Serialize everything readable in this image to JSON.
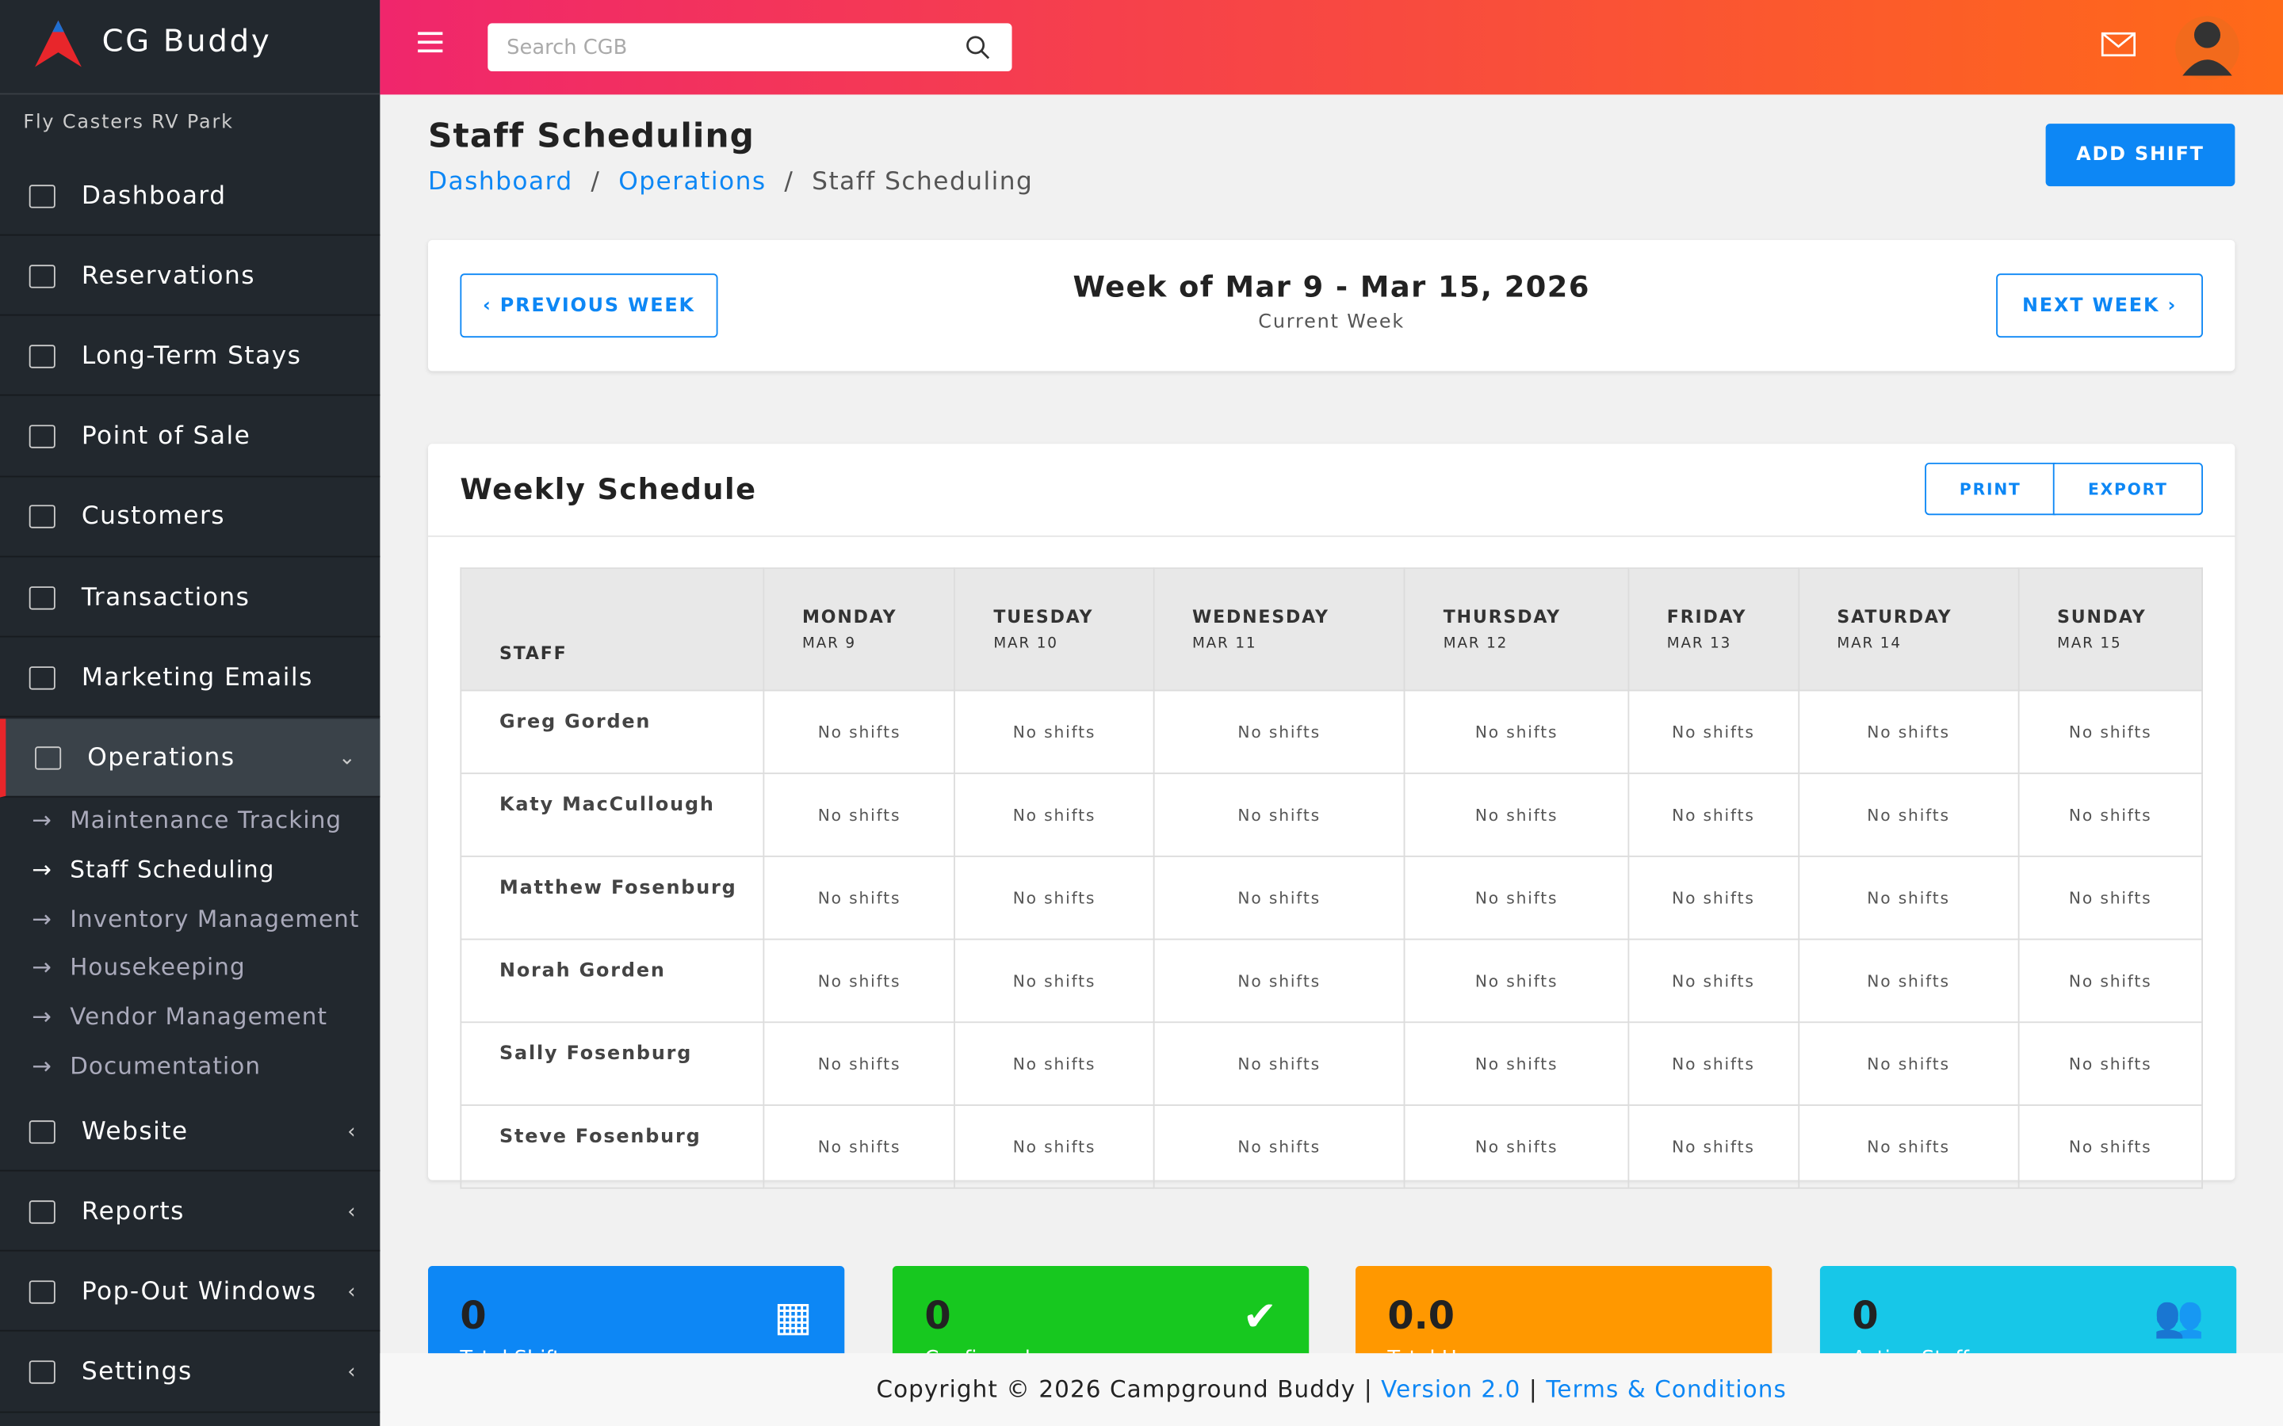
{
  "sidebar": {
    "brand": "CG Buddy",
    "park": "Fly Casters RV Park",
    "nav": [
      "Dashboard",
      "Reservations",
      "Long-Term Stays",
      "Point of Sale",
      "Customers",
      "Transactions",
      "Marketing Emails",
      "Operations"
    ],
    "submenu": [
      "Maintenance Tracking",
      "Staff Scheduling",
      "Inventory Management",
      "Housekeeping",
      "Vendor Management",
      "Documentation"
    ],
    "nav_bottom": [
      "Website",
      "Reports",
      "Pop-Out Windows",
      "Settings"
    ]
  },
  "header": {
    "search_placeholder": "Search CGB"
  },
  "page": {
    "title": "Staff Scheduling",
    "breadcrumb": [
      "Dashboard",
      "Operations",
      "Staff Scheduling"
    ],
    "add_button": "ADD SHIFT"
  },
  "week": {
    "previous": "PREVIOUS WEEK",
    "title": "Week of Mar 9 - Mar 15, 2026",
    "subtitle": "Current Week",
    "next": "NEXT WEEK"
  },
  "schedule": {
    "title": "Weekly Schedule",
    "print": "PRINT",
    "export": "EXPORT",
    "staff_header": "STAFF",
    "days": [
      {
        "name": "MONDAY",
        "date": "MAR 9"
      },
      {
        "name": "TUESDAY",
        "date": "MAR 10"
      },
      {
        "name": "WEDNESDAY",
        "date": "MAR 11"
      },
      {
        "name": "THURSDAY",
        "date": "MAR 12"
      },
      {
        "name": "FRIDAY",
        "date": "MAR 13"
      },
      {
        "name": "SATURDAY",
        "date": "MAR 14"
      },
      {
        "name": "SUNDAY",
        "date": "MAR 15"
      }
    ],
    "rows": [
      {
        "name": "Greg Gorden",
        "cells": [
          "No shifts",
          "No shifts",
          "No shifts",
          "No shifts",
          "No shifts",
          "No shifts",
          "No shifts"
        ]
      },
      {
        "name": "Katy MacCullough",
        "cells": [
          "No shifts",
          "No shifts",
          "No shifts",
          "No shifts",
          "No shifts",
          "No shifts",
          "No shifts"
        ]
      },
      {
        "name": "Matthew Fosenburg",
        "cells": [
          "No shifts",
          "No shifts",
          "No shifts",
          "No shifts",
          "No shifts",
          "No shifts",
          "No shifts"
        ]
      },
      {
        "name": "Norah Gorden",
        "cells": [
          "No shifts",
          "No shifts",
          "No shifts",
          "No shifts",
          "No shifts",
          "No shifts",
          "No shifts"
        ]
      },
      {
        "name": "Sally Fosenburg",
        "cells": [
          "No shifts",
          "No shifts",
          "No shifts",
          "No shifts",
          "No shifts",
          "No shifts",
          "No shifts"
        ]
      },
      {
        "name": "Steve Fosenburg",
        "cells": [
          "No shifts",
          "No shifts",
          "No shifts",
          "No shifts",
          "No shifts",
          "No shifts",
          "No shifts"
        ]
      }
    ]
  },
  "stats": [
    {
      "value": "0",
      "label": "Total Shifts"
    },
    {
      "value": "0",
      "label": "Confirmed"
    },
    {
      "value": "0.0",
      "label": "Total Hours"
    },
    {
      "value": "0",
      "label": "Active Staff"
    }
  ],
  "footer": {
    "copyright": "Copyright © 2026 Campground Buddy",
    "sep1": "|",
    "version": "Version 2.0",
    "sep2": "|",
    "terms": "Terms & Conditions"
  }
}
